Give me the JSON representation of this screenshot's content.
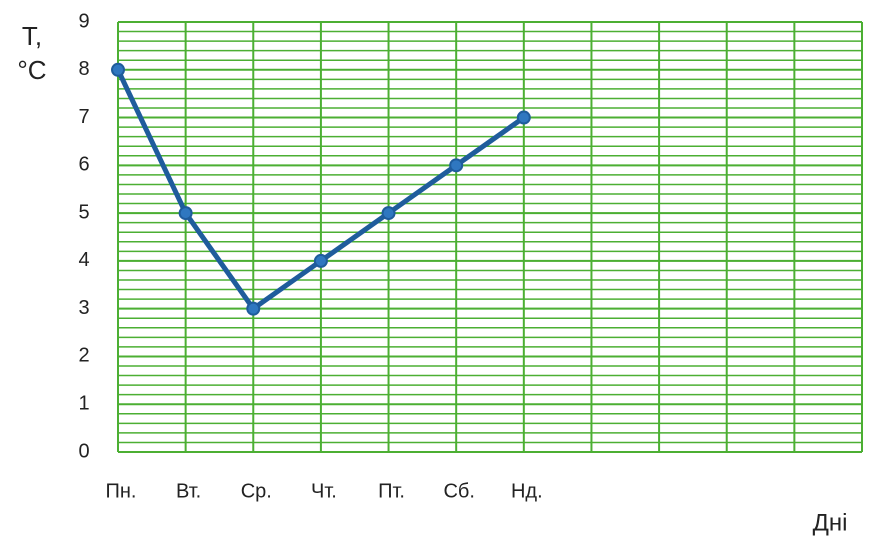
{
  "chart_data": {
    "type": "line",
    "ylabel_lines": [
      "T,",
      "°C"
    ],
    "xlabel": "Дні",
    "categories": [
      "Пн.",
      "Вт.",
      "Ср.",
      "Чт.",
      "Пт.",
      "Сб.",
      "Нд.",
      null,
      null,
      null,
      null,
      null
    ],
    "values": [
      8,
      5,
      3,
      4,
      5,
      6,
      7,
      null,
      null,
      null,
      null,
      null
    ],
    "color": "#1f5c9c",
    "grid_color": "#4caf33",
    "ylim": [
      0,
      9
    ],
    "yticks": [
      0,
      1,
      2,
      3,
      4,
      5,
      6,
      7,
      8,
      9
    ],
    "grid": true
  }
}
